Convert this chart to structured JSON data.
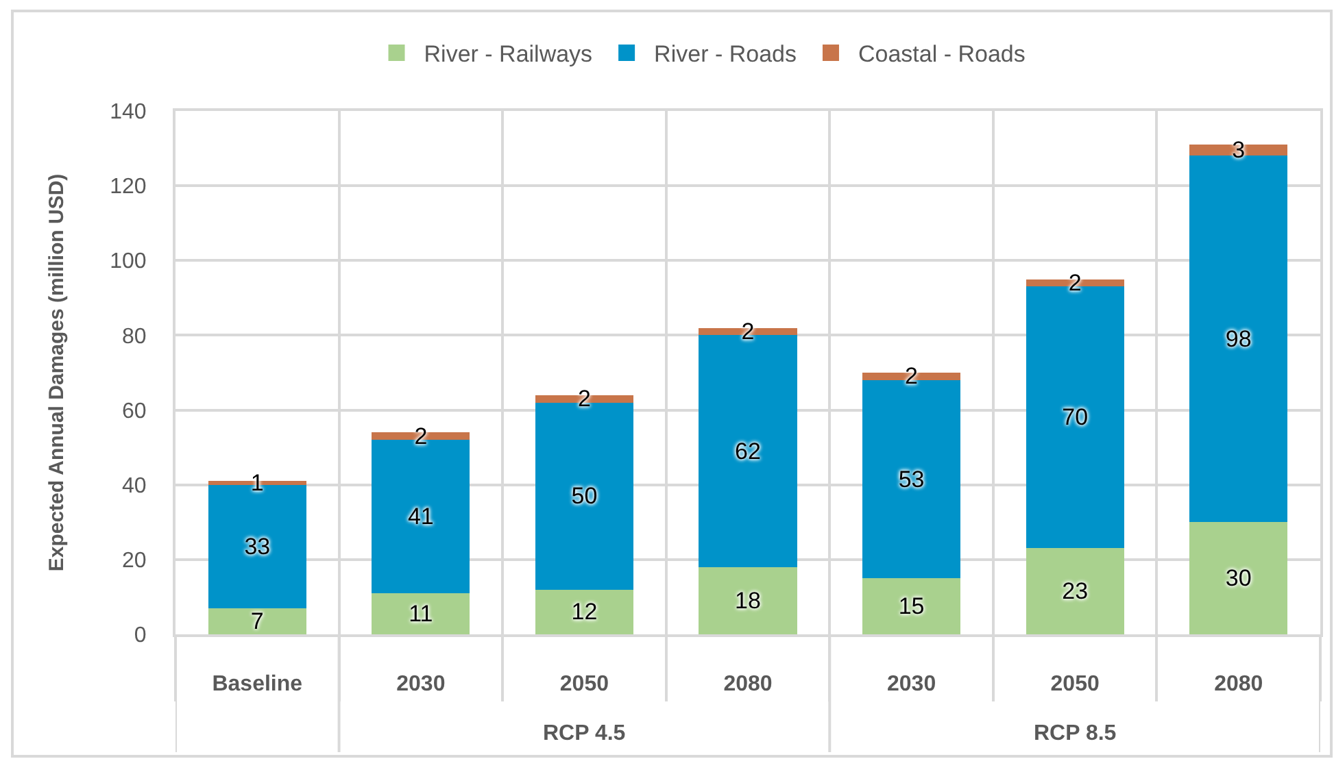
{
  "chart_data": {
    "type": "bar",
    "stacked": true,
    "categories": [
      "Baseline",
      "2030",
      "2050",
      "2080",
      "2030",
      "2050",
      "2080"
    ],
    "series": [
      {
        "name": "River - Railways",
        "color": "#a9d18e",
        "values": [
          7,
          11,
          12,
          18,
          15,
          23,
          30
        ]
      },
      {
        "name": "River - Roads",
        "color": "#0093c9",
        "values": [
          33,
          41,
          50,
          62,
          53,
          70,
          98
        ]
      },
      {
        "name": "Coastal - Roads",
        "color": "#c8754a",
        "values": [
          1,
          2,
          2,
          2,
          2,
          2,
          3
        ]
      }
    ],
    "ylabel": "Expected Annual Damages (million USD)",
    "ylim": [
      0,
      140
    ],
    "yticks": [
      0,
      20,
      40,
      60,
      80,
      100,
      120,
      140
    ],
    "grid": true,
    "legend": "top",
    "data_labels": true,
    "annotations": [
      "RCP 4.5",
      "RCP 8.5"
    ]
  }
}
